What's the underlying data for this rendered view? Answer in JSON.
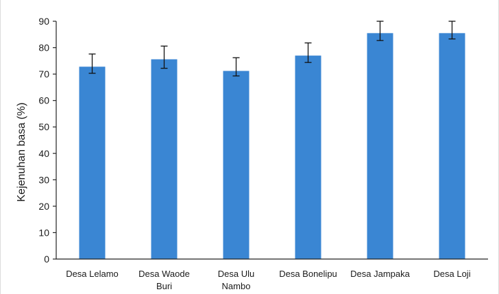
{
  "chart_data": {
    "type": "bar",
    "title": "",
    "xlabel": "",
    "ylabel": "Kejenuhan basa (%)",
    "ylim": [
      0,
      90
    ],
    "yticks": [
      0,
      10,
      20,
      30,
      40,
      50,
      60,
      70,
      80,
      90
    ],
    "grid": false,
    "bar_color": "#3a86d3",
    "categories": [
      [
        "Desa Lelamo"
      ],
      [
        "Desa Waode",
        "Buri"
      ],
      [
        "Desa Ulu",
        "Nambo"
      ],
      [
        "Desa Bonelipu"
      ],
      [
        "Desa Jampaka"
      ],
      [
        "Desa Loji"
      ]
    ],
    "values": [
      72.8,
      75.6,
      71.2,
      77.0,
      85.5,
      85.5
    ],
    "error_upper": [
      4.8,
      5.0,
      5.0,
      4.8,
      4.5,
      4.5
    ],
    "error_lower": [
      2.5,
      3.4,
      1.9,
      2.6,
      2.8,
      2.2
    ]
  }
}
